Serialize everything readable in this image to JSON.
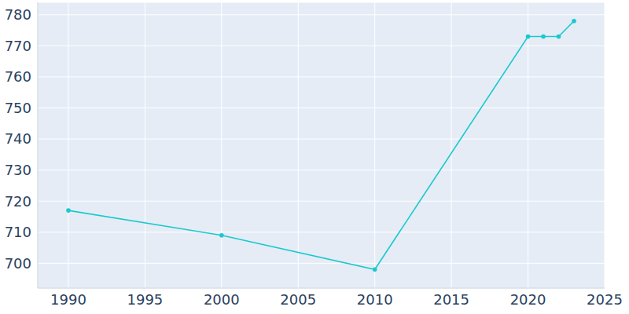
{
  "chart_data": {
    "type": "line",
    "x": [
      1990,
      2000,
      2010,
      2020,
      2021,
      2022,
      2023
    ],
    "values": [
      717,
      709,
      698,
      773,
      773,
      773,
      778
    ],
    "color": "#19c9cc",
    "marker": "circle",
    "xlim": [
      1988,
      2025
    ],
    "xticks": [
      1990,
      1995,
      2000,
      2005,
      2010,
      2015,
      2020,
      2025
    ],
    "ylim": [
      692,
      784
    ],
    "yticks": [
      700,
      710,
      720,
      730,
      740,
      750,
      760,
      770,
      780
    ],
    "grid": true
  }
}
